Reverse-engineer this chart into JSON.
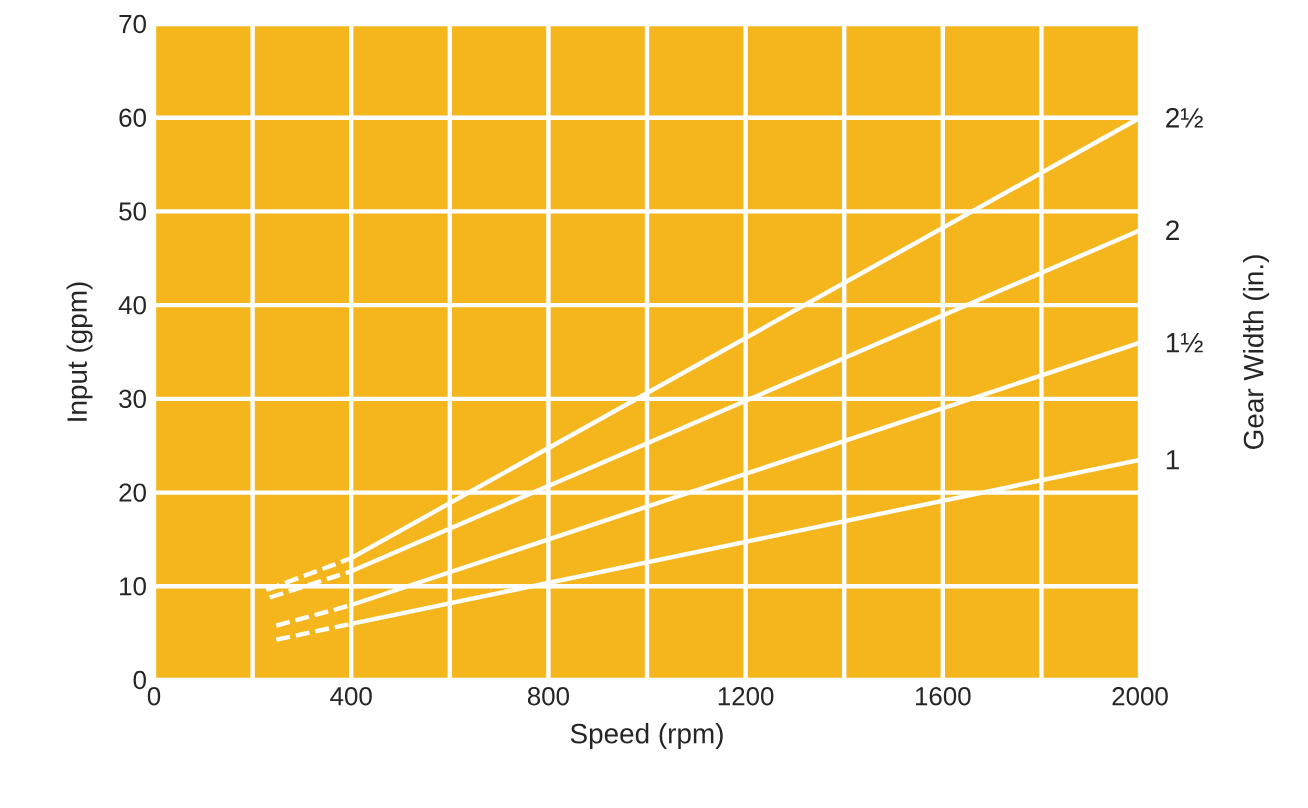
{
  "chart_data": {
    "type": "line",
    "xlabel": "Speed (rpm)",
    "ylabel": "Input (gpm)",
    "legend_title": "Gear Width (in.)",
    "xlim": [
      0,
      2000
    ],
    "ylim": [
      0,
      70
    ],
    "xticks": [
      0,
      {
        "value": 200,
        "label": null
      },
      400,
      {
        "value": 600,
        "label": null
      },
      800,
      {
        "value": 1000,
        "label": null
      },
      1200,
      {
        "value": 1400,
        "label": null
      },
      1600,
      {
        "value": 1800,
        "label": null
      },
      2000
    ],
    "yticks": [
      0,
      10,
      20,
      30,
      40,
      50,
      60,
      70
    ],
    "grid": true,
    "series": [
      {
        "x": [
          228,
          400
        ],
        "values": [
          9.6,
          13
        ],
        "color": "#ffffff",
        "line_style": "dashed"
      },
      {
        "name": "2½",
        "x": [
          400,
          2000
        ],
        "values": [
          13,
          60
        ],
        "color": "#ffffff",
        "line_style": "solid"
      },
      {
        "x": [
          235,
          400
        ],
        "values": [
          8.8,
          11.6
        ],
        "color": "#ffffff",
        "line_style": "dashed"
      },
      {
        "name": "2",
        "x": [
          400,
          2000
        ],
        "values": [
          11.6,
          48
        ],
        "color": "#ffffff",
        "line_style": "solid"
      },
      {
        "x": [
          248,
          400
        ],
        "values": [
          5.8,
          8
        ],
        "color": "#ffffff",
        "line_style": "dashed"
      },
      {
        "name": "1½",
        "x": [
          400,
          2000
        ],
        "values": [
          8,
          36
        ],
        "color": "#ffffff",
        "line_style": "solid"
      },
      {
        "x": [
          248,
          400
        ],
        "values": [
          4.3,
          6
        ],
        "color": "#ffffff",
        "line_style": "dashed"
      },
      {
        "name": "1",
        "x": [
          400,
          2000
        ],
        "values": [
          6,
          23.5
        ],
        "color": "#ffffff",
        "line_style": "solid"
      }
    ]
  }
}
